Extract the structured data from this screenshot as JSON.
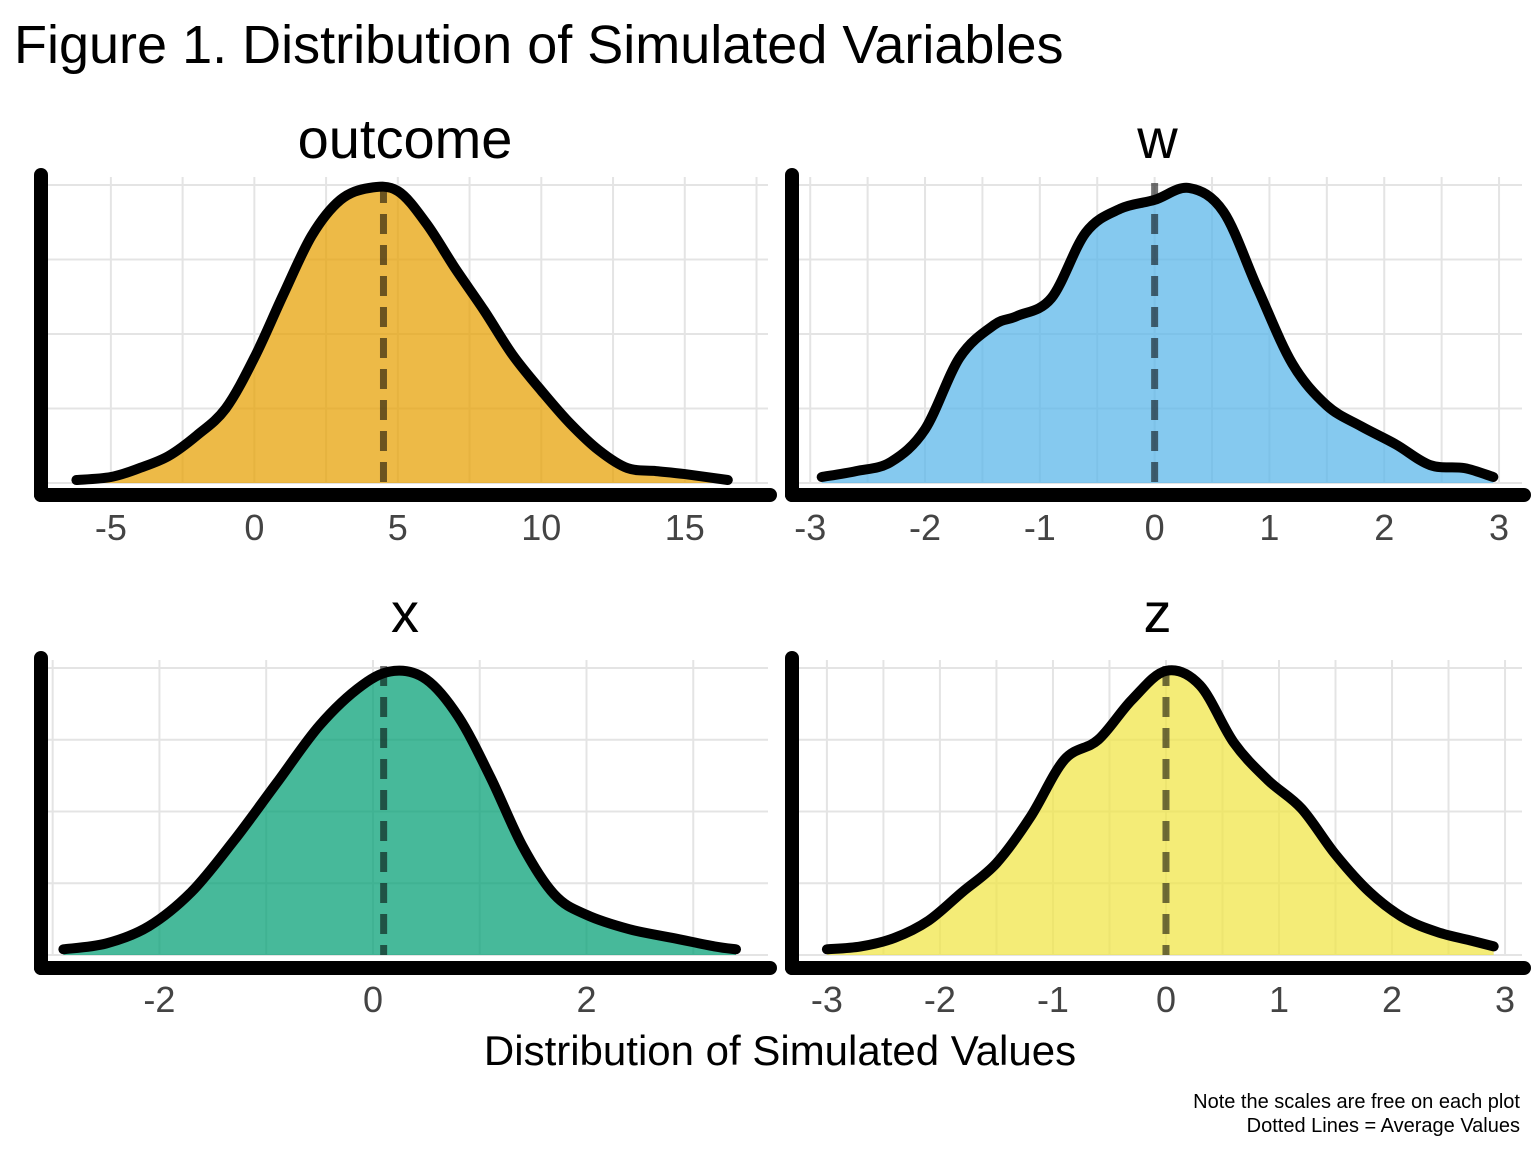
{
  "figure_title": "Figure 1. Distribution of Simulated Variables",
  "xlabel": "Distribution of Simulated Values",
  "caption_lines": [
    "Note the scales are free on each plot",
    "Dotted Lines = Average Values"
  ],
  "chart_data": [
    {
      "type": "area",
      "title": "outcome",
      "fill": "#E69F00",
      "xlim": [
        -7.4,
        17.9
      ],
      "xticks": [
        -5,
        0,
        5,
        10,
        15
      ],
      "ylim": [
        0,
        1
      ],
      "mean": 4.5,
      "x": [
        -6.2,
        -5.0,
        -4.0,
        -3.0,
        -2.0,
        -1.0,
        0.0,
        1.0,
        2.0,
        3.0,
        4.0,
        5.0,
        6.0,
        7.0,
        8.0,
        9.0,
        10.0,
        11.0,
        12.0,
        13.0,
        14.0,
        15.0,
        16.5
      ],
      "density": [
        0.01,
        0.02,
        0.05,
        0.09,
        0.16,
        0.25,
        0.42,
        0.63,
        0.83,
        0.95,
        0.99,
        0.98,
        0.87,
        0.72,
        0.58,
        0.43,
        0.31,
        0.2,
        0.11,
        0.05,
        0.04,
        0.03,
        0.01
      ]
    },
    {
      "type": "area",
      "title": "w",
      "fill": "#56B4E9",
      "xlim": [
        -3.15,
        3.2
      ],
      "xticks": [
        -3,
        -2,
        -1,
        0,
        1,
        2,
        3
      ],
      "ylim": [
        0,
        1
      ],
      "mean": 0.0,
      "x": [
        -2.9,
        -2.6,
        -2.3,
        -2.0,
        -1.7,
        -1.4,
        -1.2,
        -0.9,
        -0.6,
        -0.3,
        0.0,
        0.3,
        0.6,
        0.9,
        1.2,
        1.5,
        1.8,
        2.1,
        2.4,
        2.7,
        2.95
      ],
      "density": [
        0.02,
        0.04,
        0.07,
        0.18,
        0.42,
        0.53,
        0.56,
        0.62,
        0.84,
        0.92,
        0.95,
        0.99,
        0.91,
        0.65,
        0.4,
        0.26,
        0.19,
        0.13,
        0.06,
        0.05,
        0.02
      ]
    },
    {
      "type": "area",
      "title": "x",
      "fill": "#009E73",
      "xlim": [
        -3.1,
        3.7
      ],
      "xticks": [
        -2,
        0,
        2
      ],
      "ylim": [
        0,
        1
      ],
      "mean": 0.1,
      "x": [
        -2.9,
        -2.5,
        -2.1,
        -1.7,
        -1.3,
        -0.9,
        -0.5,
        -0.1,
        0.2,
        0.5,
        0.8,
        1.1,
        1.4,
        1.7,
        2.0,
        2.4,
        2.8,
        3.2,
        3.4
      ],
      "density": [
        0.02,
        0.04,
        0.1,
        0.22,
        0.4,
        0.6,
        0.8,
        0.94,
        0.99,
        0.96,
        0.83,
        0.62,
        0.38,
        0.21,
        0.14,
        0.09,
        0.06,
        0.03,
        0.02
      ]
    },
    {
      "type": "area",
      "title": "z",
      "fill": "#F0E442",
      "xlim": [
        -3.3,
        3.15
      ],
      "xticks": [
        -3,
        -2,
        -1,
        0,
        1,
        2,
        3
      ],
      "ylim": [
        0,
        1
      ],
      "mean": 0.0,
      "x": [
        -3.0,
        -2.7,
        -2.4,
        -2.1,
        -1.8,
        -1.5,
        -1.2,
        -0.9,
        -0.6,
        -0.3,
        0.0,
        0.3,
        0.6,
        0.9,
        1.2,
        1.5,
        1.8,
        2.1,
        2.4,
        2.7,
        2.9
      ],
      "density": [
        0.02,
        0.03,
        0.06,
        0.12,
        0.22,
        0.32,
        0.48,
        0.68,
        0.75,
        0.89,
        0.99,
        0.94,
        0.74,
        0.61,
        0.51,
        0.35,
        0.22,
        0.13,
        0.08,
        0.05,
        0.03
      ]
    }
  ]
}
